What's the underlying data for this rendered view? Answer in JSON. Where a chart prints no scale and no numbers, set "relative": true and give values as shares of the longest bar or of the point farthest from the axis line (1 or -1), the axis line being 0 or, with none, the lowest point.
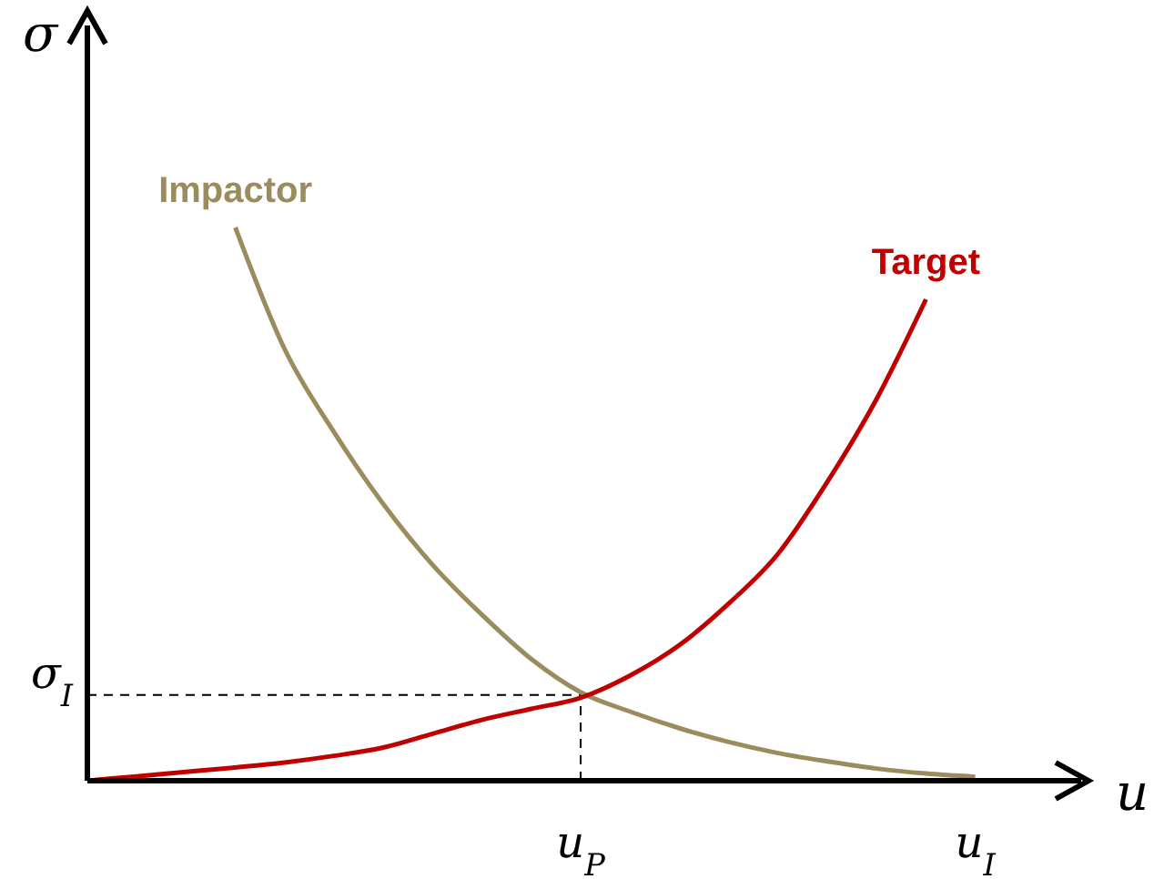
{
  "chart_data": {
    "type": "line",
    "relative": true,
    "xlabel": "u",
    "ylabel": "σ",
    "categories": [
      null,
      null,
      null,
      null,
      null,
      null,
      null,
      null,
      null,
      null,
      "u$_{P}$",
      null,
      null,
      null,
      null,
      null,
      null,
      null,
      "u$_{I}$",
      null,
      null
    ],
    "series": [
      {
        "name": "Impactor",
        "color": "#9a8c5c",
        "values": [
          null,
          null,
          null,
          1.0,
          0.78,
          0.63,
          0.5,
          0.39,
          0.3,
          0.22,
          0.16,
          0.125,
          0.095,
          0.07,
          0.05,
          0.035,
          0.022,
          0.013,
          0.007,
          null,
          null
        ]
      },
      {
        "name": "Target",
        "color": "#c00000",
        "values": [
          0,
          0.008,
          0.016,
          0.024,
          0.033,
          0.045,
          0.06,
          0.085,
          0.11,
          0.13,
          0.15,
          0.19,
          0.245,
          0.32,
          0.41,
          0.54,
          0.69,
          0.87,
          null,
          null,
          null
        ]
      }
    ],
    "ref_lines": [
      {
        "axis": "y",
        "value": 0.155,
        "label": "σ$_{I}$",
        "line_style": "dashed",
        "color": "#000000"
      },
      {
        "axis": "x",
        "value": "u$_{P}$",
        "label": null,
        "line_style": "dashed",
        "color": "#000000"
      }
    ]
  }
}
